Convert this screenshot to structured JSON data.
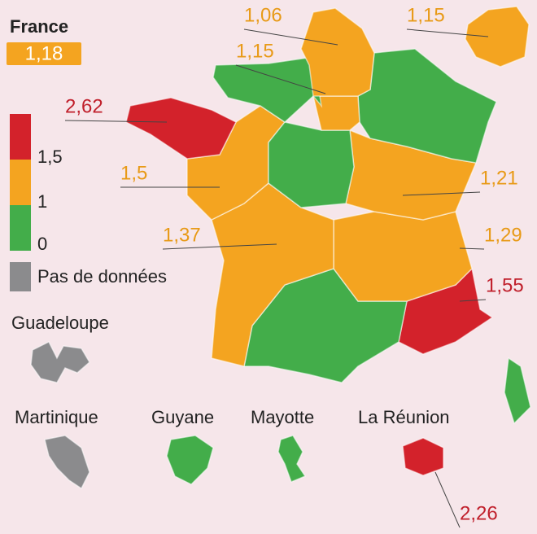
{
  "national": {
    "label": "France",
    "value": "1,18"
  },
  "palette": {
    "red": "#d3222b",
    "orange": "#f4a420",
    "green": "#43ad4a",
    "gray": "#8b8b8d"
  },
  "legend": {
    "high": "1,5",
    "mid": "1",
    "low": "0",
    "no_data": "Pas de données"
  },
  "callouts": [
    {
      "text": "1,06",
      "color": "#e89a17"
    },
    {
      "text": "1,15",
      "color": "#e89a17"
    },
    {
      "text": "1,15",
      "color": "#e89a17"
    },
    {
      "text": "2,62",
      "color": "#c01f2b"
    },
    {
      "text": "1,5",
      "color": "#e89a17"
    },
    {
      "text": "1,21",
      "color": "#e89a17"
    },
    {
      "text": "1,37",
      "color": "#e89a17"
    },
    {
      "text": "1,29",
      "color": "#e89a17"
    },
    {
      "text": "1,55",
      "color": "#c01f2b"
    },
    {
      "text": "2,26",
      "color": "#c01f2b"
    }
  ],
  "overseas": [
    "Guadeloupe",
    "Martinique",
    "Guyane",
    "Mayotte",
    "La Réunion"
  ]
}
